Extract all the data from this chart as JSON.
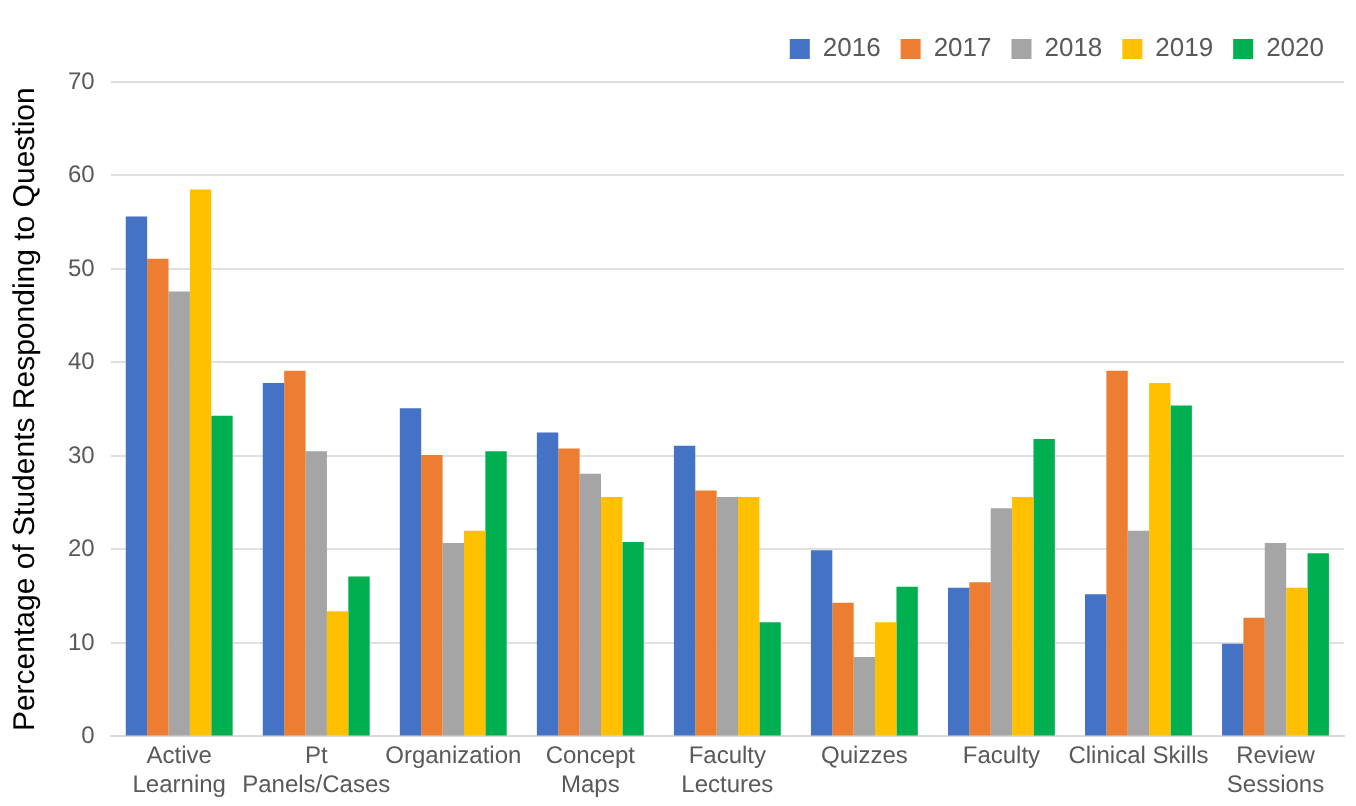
{
  "chart_data": {
    "type": "bar",
    "ylabel": "Percentage of Students Responding to Question",
    "categories": [
      "Active Learning",
      "Pt Panels/Cases",
      "Organization",
      "Concept Maps",
      "Faculty Lectures",
      "Quizzes",
      "Faculty",
      "Clinical Skills",
      "Review Sessions"
    ],
    "series": [
      {
        "name": "2016",
        "color": "#4472c4",
        "values": [
          55.6,
          37.8,
          35.1,
          32.5,
          31.1,
          19.9,
          15.9,
          15.2,
          9.9
        ]
      },
      {
        "name": "2017",
        "color": "#ed7d31",
        "values": [
          51.1,
          39.1,
          30.1,
          30.8,
          26.3,
          14.3,
          16.5,
          39.1,
          12.7
        ]
      },
      {
        "name": "2018",
        "color": "#a5a5a5",
        "values": [
          47.6,
          30.5,
          20.7,
          28.1,
          25.6,
          8.5,
          24.4,
          22.0,
          20.7
        ]
      },
      {
        "name": "2019",
        "color": "#ffc000",
        "values": [
          58.5,
          13.4,
          22.0,
          25.6,
          25.6,
          12.2,
          25.6,
          37.8,
          15.9
        ]
      },
      {
        "name": "2020",
        "color": "#00b050",
        "values": [
          34.3,
          17.1,
          30.5,
          20.8,
          12.2,
          16.0,
          31.8,
          35.4,
          19.6
        ]
      }
    ],
    "ylim": [
      0,
      70
    ],
    "yticks": [
      0,
      10,
      20,
      30,
      40,
      50,
      60,
      70
    ],
    "grid": "y",
    "legend": "top right"
  }
}
